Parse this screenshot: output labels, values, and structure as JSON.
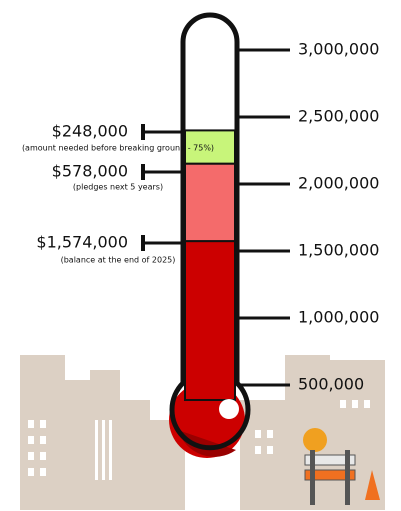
{
  "chart_data": {
    "type": "thermometer",
    "values": [
      1574000,
      578000,
      248000
    ],
    "value_labels": [
      "$1,574,000",
      "$578,000",
      "$248,000"
    ],
    "notes": [
      "(balance at the end of 2025)",
      "(pledges next 5 years)",
      "(amount needed before breaking ground - 75%)"
    ],
    "colors": [
      "#cc0000",
      "#f46b6b",
      "#c8f57a"
    ],
    "ylim": [
      0,
      3000000
    ],
    "yticks": [
      {
        "value": 500000,
        "label": "500,000"
      },
      {
        "value": 1000000,
        "label": "1,000,000"
      },
      {
        "value": 1500000,
        "label": "1,500,000"
      },
      {
        "value": 2000000,
        "label": "2,000,000"
      },
      {
        "value": 2500000,
        "label": "2,500,000"
      },
      {
        "value": 3000000,
        "label": "3,000,000"
      }
    ]
  }
}
